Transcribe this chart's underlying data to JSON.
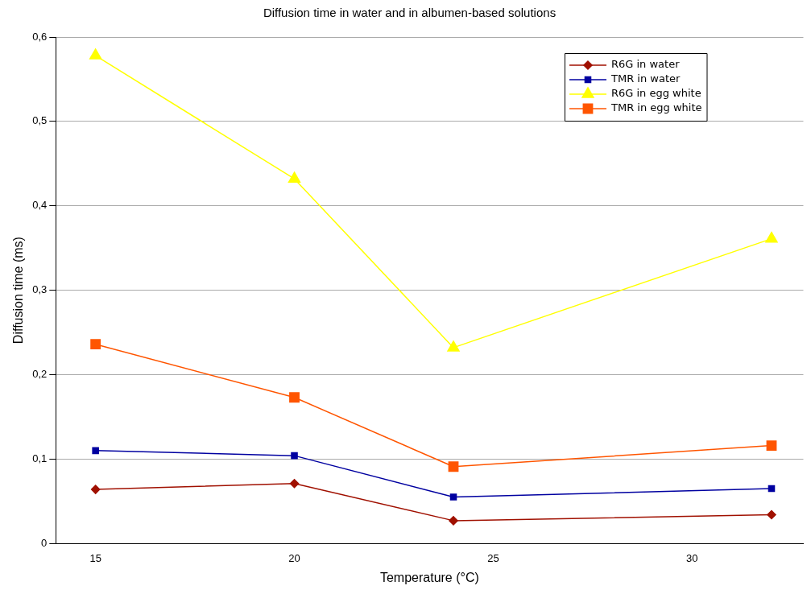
{
  "chart_data": {
    "type": "line",
    "title": "Diffusion time in water and in albumen-based solutions",
    "xlabel": "Temperature (°C)",
    "ylabel": "Diffusion time (ms)",
    "x": [
      15,
      20,
      24,
      32
    ],
    "series": [
      {
        "name": "R6G in water",
        "color": "#a01000",
        "marker": "diamond",
        "values": [
          0.064,
          0.071,
          0.027,
          0.034
        ]
      },
      {
        "name": "TMR in water",
        "color": "#0000a0",
        "marker": "square",
        "values": [
          0.11,
          0.104,
          0.055,
          0.065
        ]
      },
      {
        "name": "R6G in egg white",
        "color": "#ffff00",
        "marker": "triangle",
        "values": [
          0.578,
          0.432,
          0.232,
          0.361
        ]
      },
      {
        "name": "TMR in egg white",
        "color": "#ff5500",
        "marker": "square",
        "values": [
          0.236,
          0.173,
          0.091,
          0.116
        ]
      }
    ],
    "xlim": [
      14,
      32.8
    ],
    "xticks": [
      15,
      20,
      25,
      30
    ],
    "ylim": [
      0,
      0.6
    ],
    "yticks": [
      0,
      {
        "value": 0.1,
        "label": "0,1"
      },
      {
        "value": 0.2,
        "label": "0,2"
      },
      {
        "value": 0.3,
        "label": "0,3"
      },
      {
        "value": 0.4,
        "label": "0,4"
      },
      {
        "value": 0.5,
        "label": "0,5"
      },
      {
        "value": 0.6,
        "label": "0,6"
      }
    ],
    "grid": "y",
    "legend": "top right",
    "line_style": "solid"
  }
}
